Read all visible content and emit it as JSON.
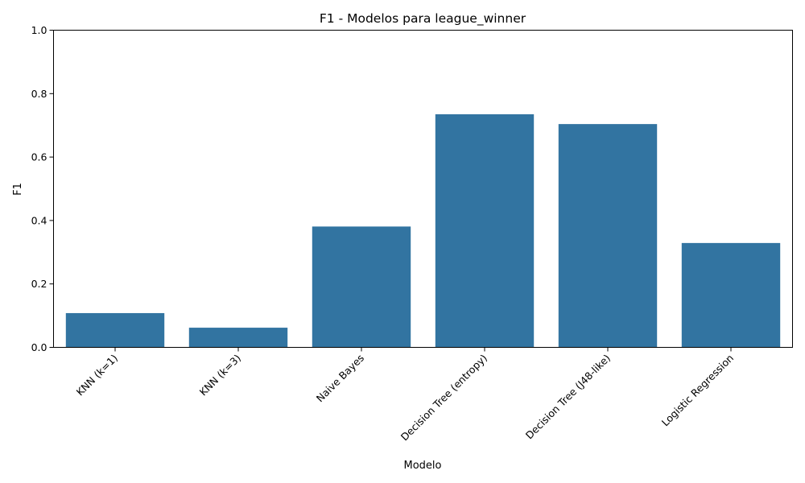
{
  "chart_data": {
    "type": "bar",
    "title": "F1 - Modelos para league_winner",
    "xlabel": "Modelo",
    "ylabel": "F1",
    "categories": [
      "KNN (k=1)",
      "KNN (k=3)",
      "Naive Bayes",
      "Decision Tree (entropy)",
      "Decision Tree (J48-like)",
      "Logistic Regression"
    ],
    "values": [
      0.108,
      0.062,
      0.381,
      0.735,
      0.704,
      0.329
    ],
    "ylim": [
      0,
      1.0
    ],
    "yticks": [
      "0.0",
      "0.2",
      "0.4",
      "0.6",
      "0.8",
      "1.0"
    ],
    "bar_color": "#3274a1",
    "grid": false,
    "legend": "none"
  }
}
